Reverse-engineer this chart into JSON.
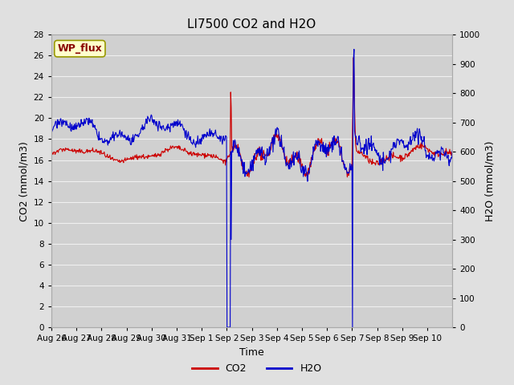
{
  "title": "LI7500 CO2 and H2O",
  "xlabel": "Time",
  "ylabel_left": "CO2 (mmol/m3)",
  "ylabel_right": "H2O (mmol/m3)",
  "ylim_left": [
    0,
    28
  ],
  "ylim_right": [
    0,
    1000
  ],
  "co2_color": "#cc0000",
  "h2o_color": "#0000cc",
  "bg_color": "#e0e0e0",
  "plot_bg_color": "#d0d0d0",
  "grid_color": "#f0f0f0",
  "label_box_text": "WP_flux",
  "label_box_facecolor": "#ffffcc",
  "label_box_edgecolor": "#999900",
  "label_box_textcolor": "#880000",
  "xtick_labels": [
    "Aug 26",
    "Aug 27",
    "Aug 28",
    "Aug 29",
    "Aug 30",
    "Aug 31",
    "Sep 1",
    "Sep 2",
    "Sep 3",
    "Sep 4",
    "Sep 5",
    "Sep 6",
    "Sep 7",
    "Sep 8",
    "Sep 9",
    "Sep 10"
  ],
  "yticks_left": [
    0,
    2,
    4,
    6,
    8,
    10,
    12,
    14,
    16,
    18,
    20,
    22,
    24,
    26,
    28
  ],
  "yticks_right": [
    0,
    100,
    200,
    300,
    400,
    500,
    600,
    700,
    800,
    900,
    1000
  ],
  "legend_labels": [
    "CO2",
    "H2O"
  ],
  "legend_colors": [
    "#cc0000",
    "#0000cc"
  ],
  "n_days": 16,
  "n_per_day": 48
}
